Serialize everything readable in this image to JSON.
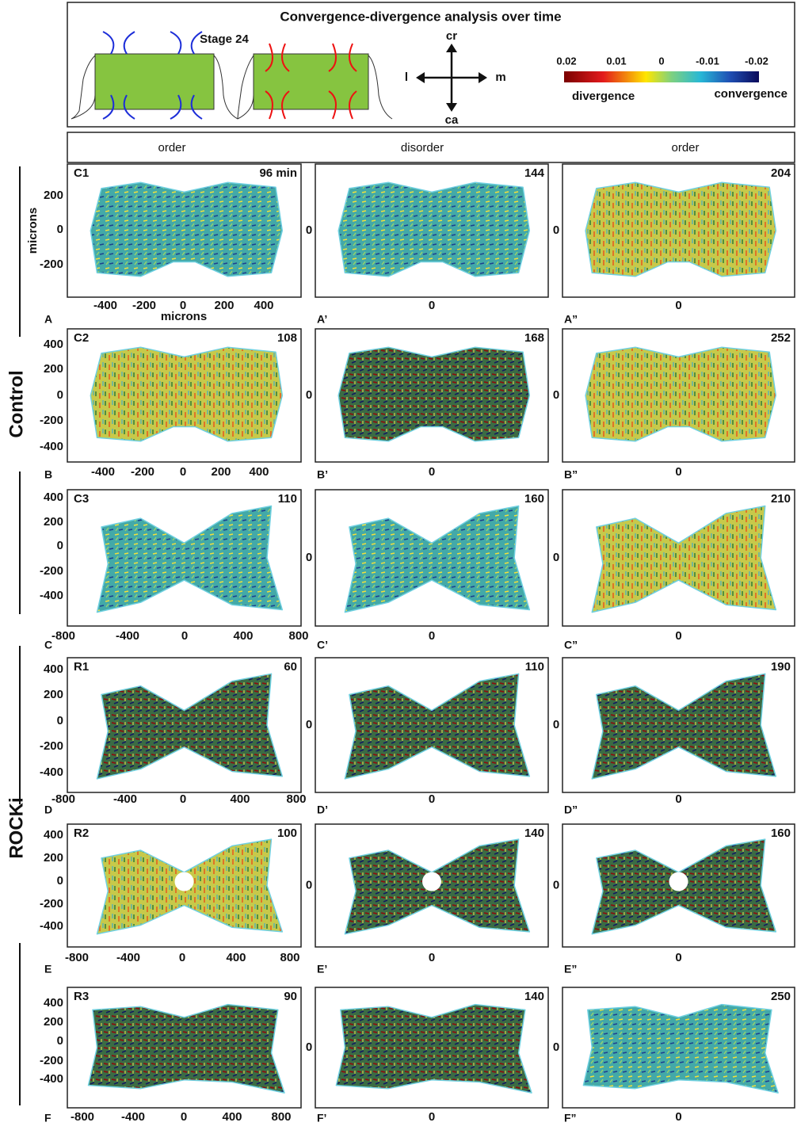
{
  "header": {
    "title": "Convergence-divergence analysis over time",
    "stage": "Stage 24",
    "compass": {
      "up": "cr",
      "down": "ca",
      "left": "l",
      "right": "m"
    },
    "colorbar": {
      "ticks": [
        "0.02",
        "0.01",
        "0",
        "-0.01",
        "-0.02"
      ],
      "left_label": "divergence",
      "right_label": "convergence"
    }
  },
  "phases": [
    "order",
    "disorder",
    "order"
  ],
  "groups": [
    "Control",
    "ROCKi"
  ],
  "axis_label": "microns",
  "zero": "0",
  "rows": [
    {
      "id": "C1",
      "times": [
        "96 min",
        "144",
        "204"
      ],
      "letters": [
        "A",
        "A’",
        "A”"
      ],
      "yticks": [
        "200",
        "0",
        "-200"
      ],
      "xticks": [
        "-400",
        "-200",
        "0",
        "200",
        "400"
      ]
    },
    {
      "id": "C2",
      "times": [
        "108",
        "168",
        "252"
      ],
      "letters": [
        "B",
        "B’",
        "B”"
      ],
      "yticks": [
        "400",
        "200",
        "0",
        "-200",
        "-400"
      ],
      "xticks": [
        "-400",
        "-200",
        "0",
        "200",
        "400"
      ]
    },
    {
      "id": "C3",
      "times": [
        "110",
        "160",
        "210"
      ],
      "letters": [
        "C",
        "C’",
        "C”"
      ],
      "yticks": [
        "400",
        "200",
        "0",
        "-200",
        "-400"
      ],
      "xticks": [
        "-800",
        "-400",
        "0",
        "400",
        "800"
      ]
    },
    {
      "id": "R1",
      "times": [
        "60",
        "110",
        "190"
      ],
      "letters": [
        "D",
        "D’",
        "D”"
      ],
      "yticks": [
        "400",
        "200",
        "0",
        "-200",
        "-400"
      ],
      "xticks": [
        "-800",
        "-400",
        "0",
        "400",
        "800"
      ]
    },
    {
      "id": "R2",
      "times": [
        "100",
        "140",
        "160"
      ],
      "letters": [
        "E",
        "E’",
        "E”"
      ],
      "yticks": [
        "400",
        "200",
        "0",
        "-200",
        "-400"
      ],
      "xticks": [
        "-800",
        "-400",
        "0",
        "400",
        "800"
      ]
    },
    {
      "id": "R3",
      "times": [
        "90",
        "140",
        "250"
      ],
      "letters": [
        "F",
        "F’",
        "F”"
      ],
      "yticks": [
        "400",
        "200",
        "0",
        "-200",
        "-400"
      ],
      "xticks": [
        "-800",
        "-400",
        "0",
        "400",
        "800"
      ]
    }
  ]
}
